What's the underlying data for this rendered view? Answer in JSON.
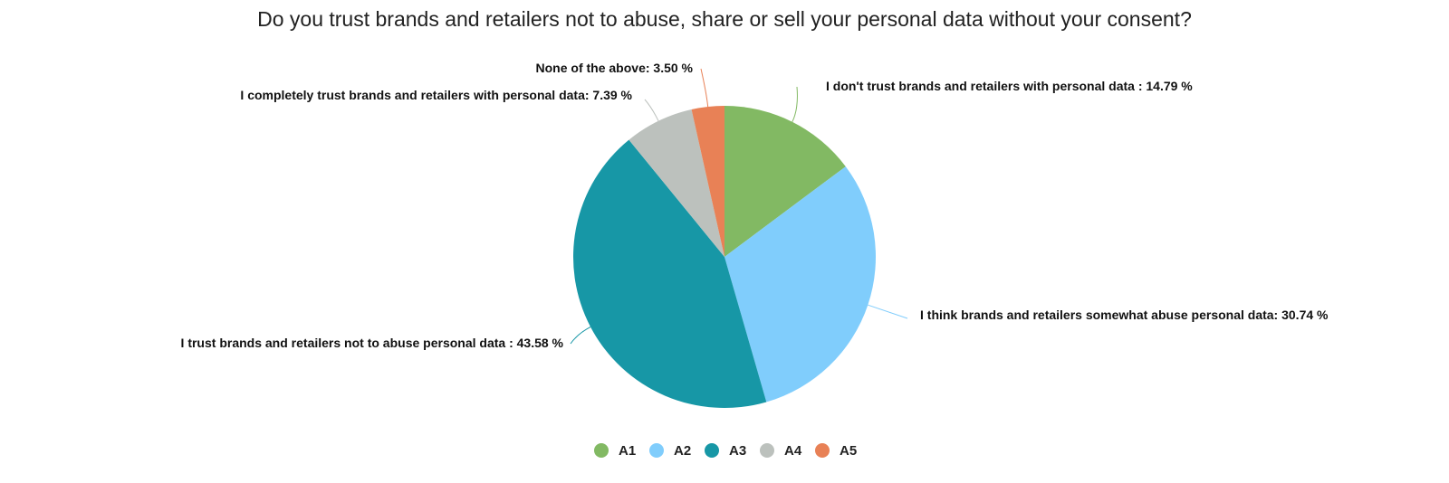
{
  "chart_data": {
    "type": "pie",
    "title": "Do you trust brands and retailers not to abuse, share or sell your personal data without your consent?",
    "slices": [
      {
        "key": "A1",
        "label": "I don't trust brands and retailers with personal data : 14.79 %",
        "value": 14.79,
        "color": "#82b963"
      },
      {
        "key": "A2",
        "label": "I think brands and retailers somewhat abuse personal data: 30.74 %",
        "value": 30.74,
        "color": "#80cdfc"
      },
      {
        "key": "A3",
        "label": "I trust brands and retailers not to abuse personal data : 43.58 %",
        "value": 43.58,
        "color": "#1797a6"
      },
      {
        "key": "A4",
        "label": "I completely trust brands and retailers with personal data: 7.39 %",
        "value": 7.39,
        "color": "#bcc1bd"
      },
      {
        "key": "A5",
        "label": "None of the above: 3.50 %",
        "value": 3.5,
        "color": "#e88156"
      }
    ],
    "legend": [
      "A1",
      "A2",
      "A3",
      "A4",
      "A5"
    ],
    "legend_position": "bottom-center"
  }
}
